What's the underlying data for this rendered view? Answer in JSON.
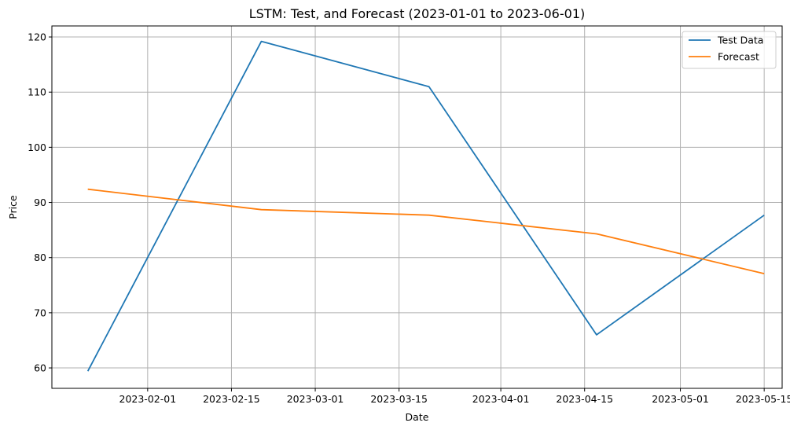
{
  "chart_data": {
    "type": "line",
    "title": "LSTM: Test, and Forecast (2023-01-01 to 2023-06-01)",
    "xlabel": "Date",
    "ylabel": "Price",
    "x_ticks": [
      "2023-02-01",
      "2023-02-15",
      "2023-03-01",
      "2023-03-15",
      "2023-04-01",
      "2023-04-15",
      "2023-05-01",
      "2023-05-15"
    ],
    "y_ticks": [
      60,
      70,
      80,
      90,
      100,
      110,
      120
    ],
    "xlim": [
      "2023-01-16",
      "2023-05-18"
    ],
    "ylim": [
      56.3,
      122
    ],
    "grid": true,
    "legend_position": "top-right",
    "series": [
      {
        "name": "Test Data",
        "color": "#1f77b4",
        "points": [
          {
            "x": "2023-01-22",
            "y": 59.4
          },
          {
            "x": "2023-02-20",
            "y": 119.2
          },
          {
            "x": "2023-03-20",
            "y": 111.0
          },
          {
            "x": "2023-04-17",
            "y": 66.0
          },
          {
            "x": "2023-05-15",
            "y": 87.7
          }
        ]
      },
      {
        "name": "Forecast",
        "color": "#ff7f0e",
        "points": [
          {
            "x": "2023-01-22",
            "y": 92.4
          },
          {
            "x": "2023-02-20",
            "y": 88.7
          },
          {
            "x": "2023-03-20",
            "y": 87.7
          },
          {
            "x": "2023-04-17",
            "y": 84.3
          },
          {
            "x": "2023-05-15",
            "y": 77.1
          }
        ]
      }
    ]
  }
}
